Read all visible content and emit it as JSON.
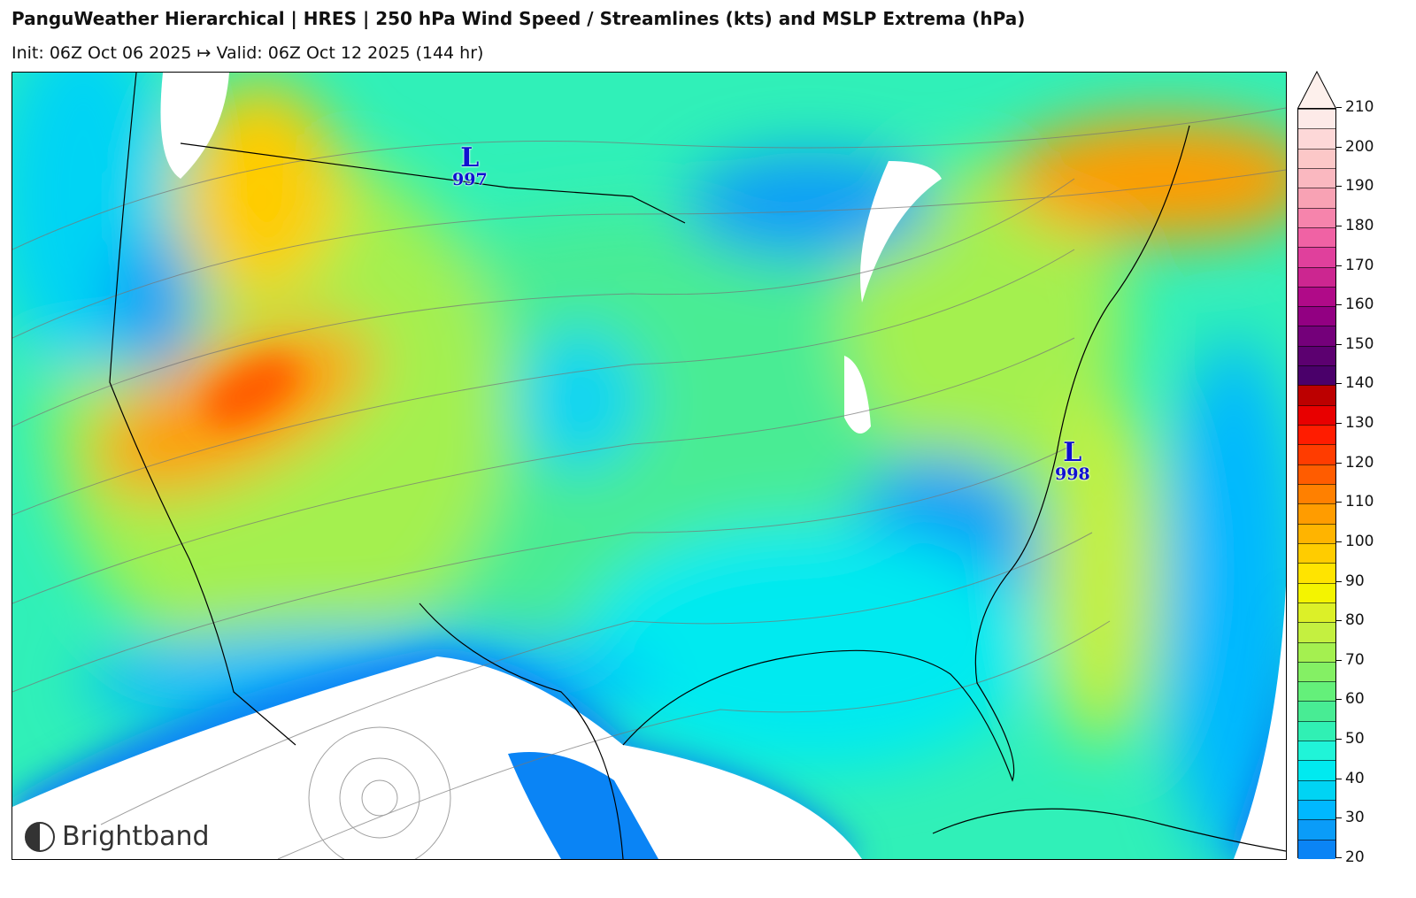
{
  "header": {
    "title": "PanguWeather Hierarchical | HRES | 250 hPa Wind Speed / Streamlines (kts) and MSLP Extrema (hPa)",
    "subtitle": "Init: 06Z Oct 06 2025 ↦ Valid: 06Z Oct 12 2025 (144 hr)"
  },
  "map": {
    "region": "Continental United States",
    "pressure_extrema": [
      {
        "type": "L",
        "value": "997",
        "location": "Montana/North Dakota border"
      },
      {
        "type": "L",
        "value": "998",
        "location": "off North Carolina coast"
      }
    ],
    "logo": "Brightband"
  },
  "colorbar": {
    "min": 20,
    "max": 210,
    "step": 5,
    "extend": "max",
    "ticks": [
      "20",
      "30",
      "40",
      "50",
      "60",
      "70",
      "80",
      "90",
      "100",
      "110",
      "120",
      "130",
      "140",
      "150",
      "160",
      "170",
      "180",
      "190",
      "200",
      "210"
    ],
    "colors": [
      "#0a84f5",
      "#0a9cf8",
      "#00b8ff",
      "#00d4f4",
      "#00eaf0",
      "#20f4d8",
      "#30f0b4",
      "#48ec94",
      "#64f07a",
      "#84f064",
      "#a4f050",
      "#c4f040",
      "#dcf028",
      "#f4f400",
      "#ffe400",
      "#ffcc00",
      "#ffb400",
      "#ff9c00",
      "#ff8000",
      "#ff5c00",
      "#ff3c00",
      "#ff1c00",
      "#e80000",
      "#bc0000",
      "#4a006a",
      "#5c0070",
      "#74007a",
      "#920082",
      "#b00a88",
      "#cc2690",
      "#e0409c",
      "#f062a4",
      "#f684ac",
      "#f8a2b4",
      "#fab8c0",
      "#fcc8c8",
      "#fdd8d8",
      "#fdeae8"
    ],
    "extend_color": "#fdf0ec"
  }
}
